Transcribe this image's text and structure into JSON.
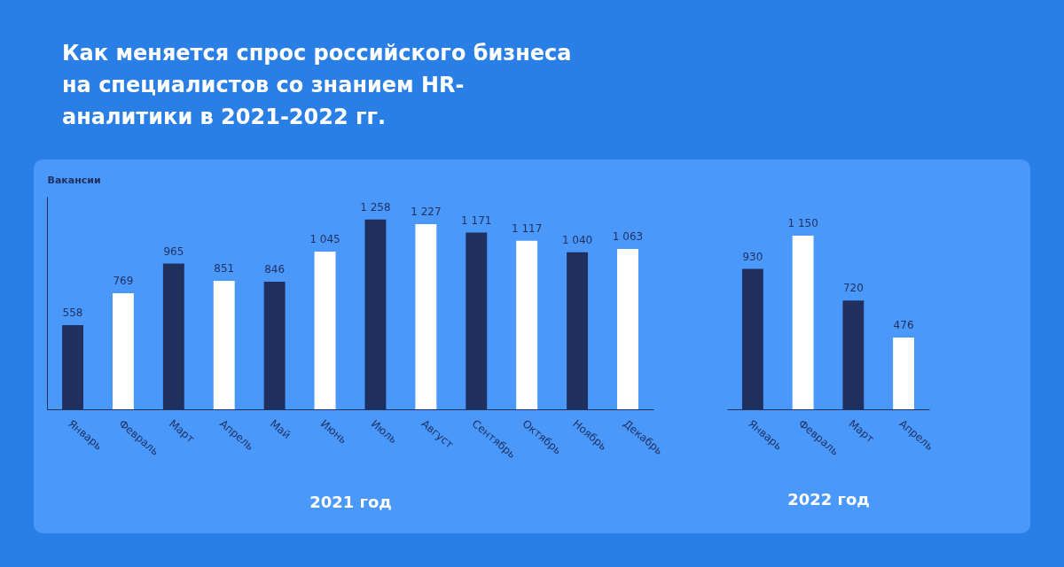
{
  "chart_data": [
    {
      "type": "bar",
      "title": "Как меняется спрос российского бизнеса на специалистов со знанием HR-аналитики в 2021-2022 гг.",
      "ylabel": "Вакансии",
      "xlabel": "2021 год",
      "tick_labels": "x",
      "data_labels": true,
      "categories": [
        "Январь",
        "Февраль",
        "Март",
        "Апрель",
        "Май",
        "Июнь",
        "Июль",
        "Август",
        "Сентябрь",
        "Октябрь",
        "Ноябрь",
        "Декабрь"
      ],
      "values": [
        558,
        769,
        965,
        851,
        846,
        1045,
        1258,
        1227,
        1171,
        1117,
        1040,
        1063
      ],
      "colors": [
        "#1f2f5e",
        "#ffffff",
        "#1f2f5e",
        "#ffffff",
        "#1f2f5e",
        "#ffffff",
        "#1f2f5e",
        "#ffffff",
        "#1f2f5e",
        "#ffffff",
        "#1f2f5e",
        "#ffffff"
      ]
    },
    {
      "type": "bar",
      "xlabel": "2022 год",
      "tick_labels": "x",
      "data_labels": true,
      "categories": [
        "Январь",
        "Февраль",
        "Март",
        "Апрель"
      ],
      "values": [
        930,
        1150,
        720,
        476
      ],
      "colors": [
        "#1f2f5e",
        "#ffffff",
        "#1f2f5e",
        "#ffffff"
      ]
    }
  ]
}
